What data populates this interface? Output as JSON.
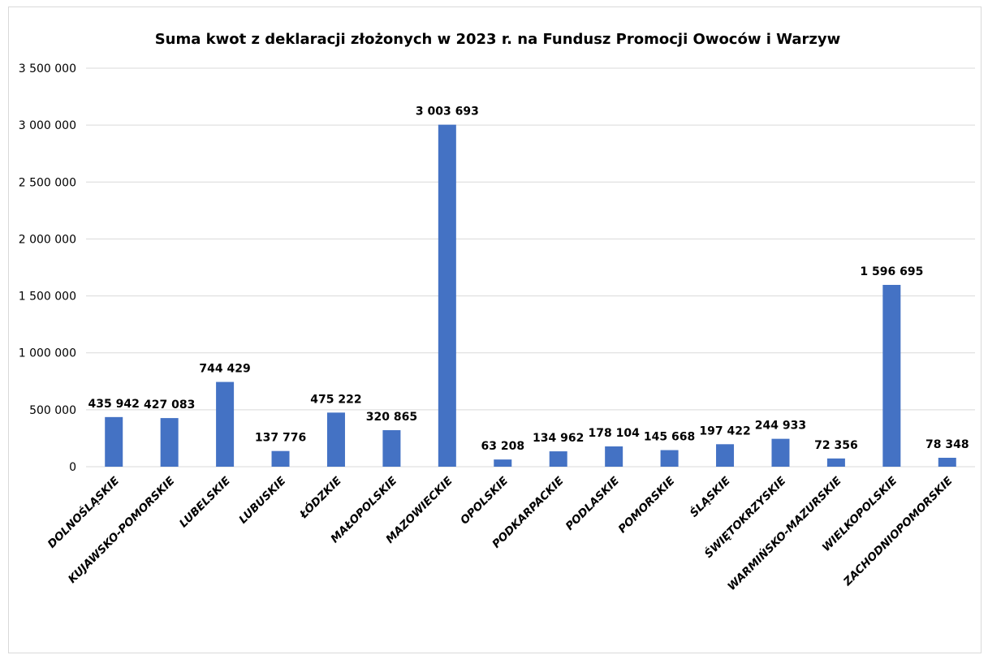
{
  "chart_data": {
    "type": "bar",
    "title": "Suma kwot z deklaracji złożonych w 2023 r. na Fundusz Promocji Owoców i Warzyw",
    "xlabel": "",
    "ylabel": "",
    "ylim": [
      0,
      3500000
    ],
    "yticks": [
      0,
      500000,
      1000000,
      1500000,
      2000000,
      2500000,
      3000000,
      3500000
    ],
    "ytick_labels": [
      "0",
      "500 000",
      "1 000 000",
      "1 500 000",
      "2 000 000",
      "2 500 000",
      "3 000 000",
      "3 500 000"
    ],
    "grid": true,
    "legend": "none",
    "bar_color": "#4472c4",
    "categories": [
      "DOLNOŚLĄSKIE",
      "KUJAWSKO-POMORSKIE",
      "LUBELSKIE",
      "LUBUSKIE",
      "ŁÓDZKIE",
      "MAŁOPOLSKIE",
      "MAZOWIECKIE",
      "OPOLSKIE",
      "PODKARPACKIE",
      "PODLASKIE",
      "POMORSKIE",
      "ŚLĄSKIE",
      "ŚWIĘTOKRZYSKIE",
      "WARMIŃSKO-MAZURSKIE",
      "WIELKOPOLSKIE",
      "ZACHODNIOPOMORSKIE"
    ],
    "values": [
      435942,
      427083,
      744429,
      137776,
      475222,
      320865,
      3003693,
      63208,
      134962,
      178104,
      145668,
      197422,
      244933,
      72356,
      1596695,
      78348
    ],
    "value_labels": [
      "435 942",
      "427 083",
      "744 429",
      "137 776",
      "475 222",
      "320 865",
      "3 003 693",
      "63 208",
      "134 962",
      "178 104",
      "145 668",
      "197 422",
      "244 933",
      "72 356",
      "1 596 695",
      "78 348"
    ]
  }
}
